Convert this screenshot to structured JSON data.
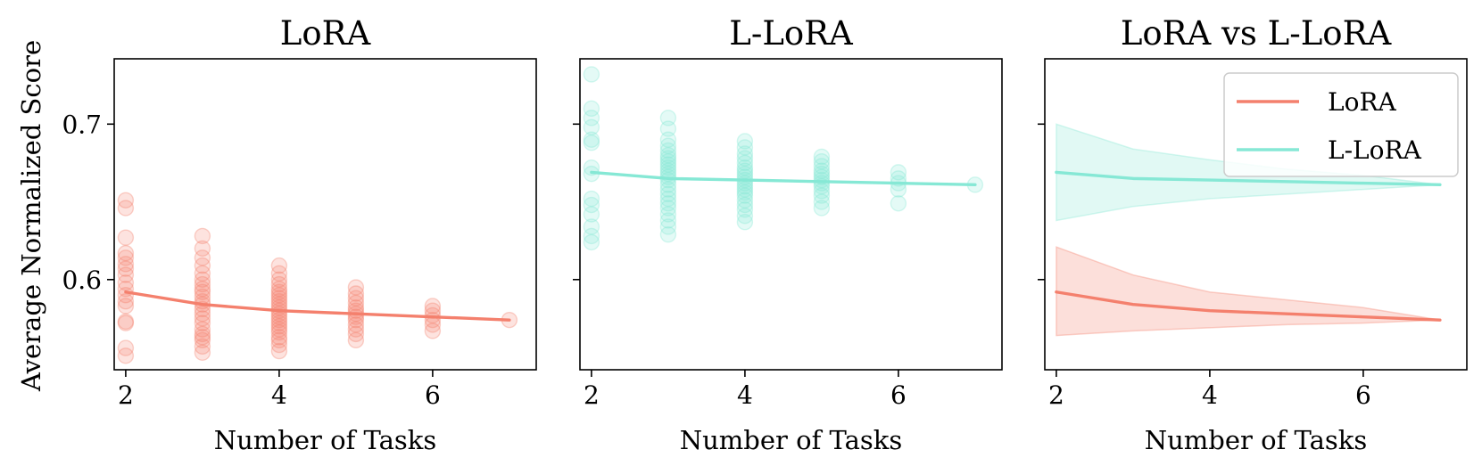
{
  "figure": {
    "ylabel": "Average Normalized Score",
    "colors": {
      "lora": "#f4806d",
      "llora": "#86e8d5"
    }
  },
  "chart_data": [
    {
      "type": "scatter",
      "title": "LoRA",
      "xlabel": "Number of Tasks",
      "ylabel": "Average Normalized Score",
      "xlim": [
        1.85,
        7.35
      ],
      "ylim": [
        0.542,
        0.742
      ],
      "xticks": [
        2,
        4,
        6
      ],
      "yticks": [
        0.6,
        0.7
      ],
      "ytick_labels": [
        "0.6",
        "0.7"
      ],
      "points": {
        "color": "lora",
        "groups": [
          {
            "x": 2,
            "y": [
              0.551,
              0.556,
              0.572,
              0.573,
              0.583,
              0.586,
              0.59,
              0.594,
              0.598,
              0.603,
              0.607,
              0.61,
              0.614,
              0.617,
              0.627,
              0.646,
              0.651
            ]
          },
          {
            "x": 3,
            "y": [
              0.553,
              0.557,
              0.561,
              0.563,
              0.565,
              0.568,
              0.572,
              0.575,
              0.578,
              0.581,
              0.584,
              0.586,
              0.589,
              0.592,
              0.594,
              0.597,
              0.6,
              0.604,
              0.609,
              0.614,
              0.62,
              0.628
            ]
          },
          {
            "x": 4,
            "y": [
              0.554,
              0.558,
              0.561,
              0.563,
              0.566,
              0.568,
              0.57,
              0.572,
              0.574,
              0.576,
              0.578,
              0.58,
              0.582,
              0.584,
              0.586,
              0.588,
              0.59,
              0.592,
              0.594,
              0.597,
              0.6,
              0.604,
              0.609
            ]
          },
          {
            "x": 5,
            "y": [
              0.561,
              0.565,
              0.568,
              0.571,
              0.574,
              0.576,
              0.578,
              0.58,
              0.582,
              0.585,
              0.588,
              0.591,
              0.595
            ]
          },
          {
            "x": 6,
            "y": [
              0.567,
              0.571,
              0.574,
              0.577,
              0.58,
              0.583
            ]
          },
          {
            "x": 7,
            "y": [
              0.574
            ]
          }
        ]
      },
      "series": [
        {
          "color": "lora",
          "x": [
            2,
            3,
            4,
            5,
            6,
            7
          ],
          "y": [
            0.592,
            0.584,
            0.58,
            0.578,
            0.576,
            0.574
          ]
        }
      ]
    },
    {
      "type": "scatter",
      "title": "L-LoRA",
      "xlabel": "Number of Tasks",
      "xlim": [
        1.85,
        7.35
      ],
      "ylim": [
        0.542,
        0.742
      ],
      "xticks": [
        2,
        4,
        6
      ],
      "yticks": [
        0.6,
        0.7
      ],
      "ytick_labels": [
        "",
        ""
      ],
      "points": {
        "color": "llora",
        "groups": [
          {
            "x": 2,
            "y": [
              0.624,
              0.628,
              0.634,
              0.642,
              0.648,
              0.652,
              0.668,
              0.672,
              0.688,
              0.69,
              0.698,
              0.704,
              0.71,
              0.732
            ]
          },
          {
            "x": 3,
            "y": [
              0.629,
              0.634,
              0.638,
              0.642,
              0.646,
              0.649,
              0.652,
              0.655,
              0.658,
              0.661,
              0.664,
              0.666,
              0.668,
              0.67,
              0.672,
              0.674,
              0.676,
              0.678,
              0.68,
              0.683,
              0.686,
              0.69,
              0.697,
              0.704
            ]
          },
          {
            "x": 4,
            "y": [
              0.637,
              0.641,
              0.645,
              0.648,
              0.651,
              0.654,
              0.656,
              0.658,
              0.66,
              0.662,
              0.664,
              0.666,
              0.668,
              0.67,
              0.672,
              0.675,
              0.678,
              0.681,
              0.685,
              0.689
            ]
          },
          {
            "x": 5,
            "y": [
              0.646,
              0.65,
              0.654,
              0.657,
              0.66,
              0.662,
              0.664,
              0.666,
              0.668,
              0.67,
              0.673,
              0.676,
              0.679
            ]
          },
          {
            "x": 6,
            "y": [
              0.649,
              0.658,
              0.662,
              0.665,
              0.669
            ]
          },
          {
            "x": 7,
            "y": [
              0.661
            ]
          }
        ]
      },
      "series": [
        {
          "color": "llora",
          "x": [
            2,
            3,
            4,
            5,
            6,
            7
          ],
          "y": [
            0.669,
            0.665,
            0.664,
            0.663,
            0.662,
            0.661
          ]
        }
      ]
    },
    {
      "type": "line",
      "title": "LoRA vs L-LoRA",
      "xlabel": "Number of Tasks",
      "xlim": [
        1.85,
        7.35
      ],
      "ylim": [
        0.542,
        0.742
      ],
      "xticks": [
        2,
        4,
        6
      ],
      "yticks": [
        0.6,
        0.7
      ],
      "ytick_labels": [
        "",
        ""
      ],
      "legend": {
        "position": "top-right",
        "entries": [
          "LoRA",
          "L-LoRA"
        ]
      },
      "series": [
        {
          "name": "LoRA",
          "color": "lora",
          "x": [
            2,
            3,
            4,
            5,
            6,
            7
          ],
          "y": [
            0.592,
            0.584,
            0.58,
            0.578,
            0.576,
            0.574
          ],
          "band_low": [
            0.564,
            0.567,
            0.569,
            0.571,
            0.572,
            0.574
          ],
          "band_high": [
            0.621,
            0.603,
            0.592,
            0.587,
            0.582,
            0.574
          ]
        },
        {
          "name": "L-LoRA",
          "color": "llora",
          "x": [
            2,
            3,
            4,
            5,
            6,
            7
          ],
          "y": [
            0.669,
            0.665,
            0.664,
            0.663,
            0.662,
            0.661
          ],
          "band_low": [
            0.638,
            0.647,
            0.652,
            0.655,
            0.658,
            0.661
          ],
          "band_high": [
            0.7,
            0.684,
            0.677,
            0.671,
            0.667,
            0.661
          ]
        }
      ]
    }
  ]
}
